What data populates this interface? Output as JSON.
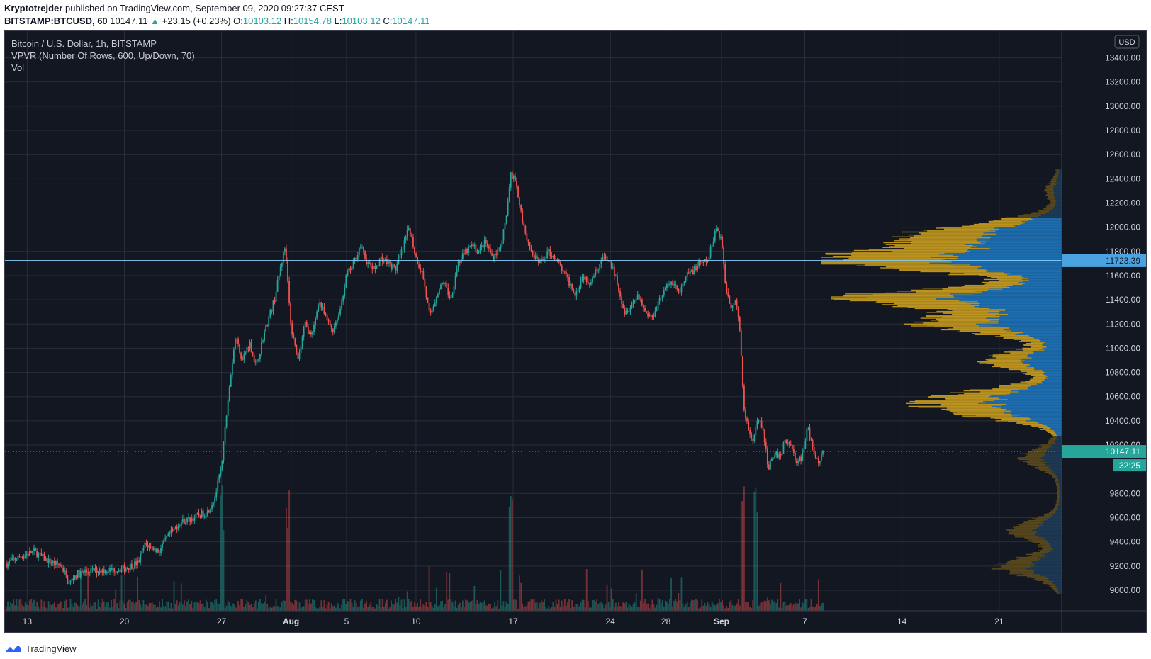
{
  "header": {
    "author": "Kryptotrejder",
    "published": "published on TradingView.com, September 09, 2020 09:27:37 CEST",
    "symbol": "BITSTAMP:BTCUSD, 60",
    "last": "10147.11",
    "change_icon": "triangle-up-icon",
    "change": "+23.15 (+0.23%)",
    "o_label": "O:",
    "o_value": "10103.12",
    "h_label": "H:",
    "h_value": "10154.78",
    "l_label": "L:",
    "l_value": "10103.12",
    "c_label": "C:",
    "c_value": "10147.11"
  },
  "legend": {
    "title": "Bitcoin / U.S. Dollar, 1h, BITSTAMP",
    "indicator": "VPVR (Number Of Rows, 600, Up/Down, 70)",
    "volume": "Vol"
  },
  "footer": {
    "brand": "TradingView",
    "logo_icon": "tradingview-logo-icon"
  },
  "colors": {
    "background": "#131722",
    "grid": "#2a2e39",
    "up": "#26a69a",
    "down": "#ef5350",
    "poc_line": "#8ad0ff",
    "vp_value_area_up": "#1e73b9",
    "vp_value_area_down": "#c49a1f",
    "vp_outside_up": "#1d3b57",
    "vp_outside_down": "#5b4a1c",
    "price_label": "#26a69a"
  },
  "chart_data": {
    "type": "candlestick",
    "title": "Bitcoin / U.S. Dollar, 1h, BITSTAMP",
    "currency": "USD",
    "y_axis": {
      "ticks": [
        "13400.00",
        "13200.00",
        "13000.00",
        "12800.00",
        "12600.00",
        "12400.00",
        "12200.00",
        "12000.00",
        "11800.00",
        "11600.00",
        "11400.00",
        "11200.00",
        "11000.00",
        "10800.00",
        "10600.00",
        "10400.00",
        "10200.00",
        "9800.00",
        "9600.00",
        "9400.00",
        "9200.00",
        "9000.00"
      ],
      "ylim": [
        8830,
        13620
      ]
    },
    "x_axis": {
      "ticks": [
        {
          "label": "13",
          "day": 13
        },
        {
          "label": "20",
          "day": 20
        },
        {
          "label": "27",
          "day": 27
        },
        {
          "label": "Aug",
          "day": 32
        },
        {
          "label": "5",
          "day": 36
        },
        {
          "label": "10",
          "day": 41
        },
        {
          "label": "17",
          "day": 48
        },
        {
          "label": "24",
          "day": 55
        },
        {
          "label": "28",
          "day": 59
        },
        {
          "label": "Sep",
          "day": 63
        },
        {
          "label": "7",
          "day": 69
        },
        {
          "label": "14",
          "day": 76
        },
        {
          "label": "21",
          "day": 83
        }
      ],
      "bold_labels": [
        "Aug",
        "Sep"
      ],
      "xlim": [
        11.4,
        87.5
      ]
    },
    "price_path": [
      [
        11.5,
        9220
      ],
      [
        12.5,
        9280
      ],
      [
        13.5,
        9320
      ],
      [
        14.5,
        9240
      ],
      [
        15.5,
        9200
      ],
      [
        16,
        9050
      ],
      [
        16.5,
        9130
      ],
      [
        17.5,
        9160
      ],
      [
        19,
        9170
      ],
      [
        20,
        9180
      ],
      [
        21,
        9230
      ],
      [
        21.5,
        9380
      ],
      [
        22.5,
        9320
      ],
      [
        23,
        9420
      ],
      [
        24,
        9560
      ],
      [
        25,
        9600
      ],
      [
        26,
        9650
      ],
      [
        26.5,
        9760
      ],
      [
        27,
        10020
      ],
      [
        27.5,
        10650
      ],
      [
        28,
        11100
      ],
      [
        28.5,
        10900
      ],
      [
        29,
        11050
      ],
      [
        29.5,
        10850
      ],
      [
        30,
        11100
      ],
      [
        30.8,
        11400
      ],
      [
        31.3,
        11700
      ],
      [
        31.6,
        11850
      ],
      [
        32,
        11150
      ],
      [
        32.5,
        10900
      ],
      [
        33,
        11200
      ],
      [
        33.5,
        11080
      ],
      [
        34,
        11400
      ],
      [
        34.5,
        11250
      ],
      [
        35,
        11150
      ],
      [
        35.5,
        11300
      ],
      [
        36,
        11600
      ],
      [
        36.5,
        11700
      ],
      [
        37,
        11850
      ],
      [
        37.5,
        11700
      ],
      [
        38,
        11650
      ],
      [
        38.5,
        11750
      ],
      [
        39,
        11700
      ],
      [
        39.5,
        11650
      ],
      [
        40,
        11800
      ],
      [
        40.5,
        12000
      ],
      [
        41,
        11750
      ],
      [
        41.5,
        11600
      ],
      [
        42,
        11250
      ],
      [
        42.5,
        11450
      ],
      [
        43,
        11550
      ],
      [
        43.5,
        11400
      ],
      [
        44,
        11700
      ],
      [
        44.5,
        11780
      ],
      [
        45,
        11850
      ],
      [
        45.5,
        11800
      ],
      [
        46,
        11880
      ],
      [
        46.5,
        11750
      ],
      [
        47,
        11820
      ],
      [
        47.5,
        12050
      ],
      [
        47.8,
        12450
      ],
      [
        48.2,
        12380
      ],
      [
        48.6,
        12100
      ],
      [
        49,
        11900
      ],
      [
        49.5,
        11750
      ],
      [
        50,
        11700
      ],
      [
        50.5,
        11800
      ],
      [
        51,
        11750
      ],
      [
        51.5,
        11650
      ],
      [
        52,
        11550
      ],
      [
        52.5,
        11450
      ],
      [
        53,
        11600
      ],
      [
        53.5,
        11550
      ],
      [
        54,
        11650
      ],
      [
        54.5,
        11750
      ],
      [
        55,
        11700
      ],
      [
        55.5,
        11550
      ],
      [
        56,
        11300
      ],
      [
        56.5,
        11350
      ],
      [
        57,
        11450
      ],
      [
        57.5,
        11300
      ],
      [
        58,
        11250
      ],
      [
        58.5,
        11400
      ],
      [
        59,
        11500
      ],
      [
        59.5,
        11550
      ],
      [
        60,
        11450
      ],
      [
        60.5,
        11600
      ],
      [
        61,
        11650
      ],
      [
        61.5,
        11700
      ],
      [
        62,
        11720
      ],
      [
        62.3,
        11850
      ],
      [
        62.6,
        12000
      ],
      [
        63,
        11900
      ],
      [
        63.3,
        11500
      ],
      [
        63.7,
        11350
      ],
      [
        64,
        11400
      ],
      [
        64.3,
        11200
      ],
      [
        64.6,
        10500
      ],
      [
        65,
        10300
      ],
      [
        65.3,
        10200
      ],
      [
        65.6,
        10450
      ],
      [
        66,
        10300
      ],
      [
        66.4,
        10000
      ],
      [
        66.8,
        10150
      ],
      [
        67.2,
        10100
      ],
      [
        67.6,
        10250
      ],
      [
        68,
        10200
      ],
      [
        68.4,
        10050
      ],
      [
        68.8,
        10100
      ],
      [
        69.2,
        10350
      ],
      [
        69.6,
        10150
      ],
      [
        70,
        10050
      ],
      [
        70.3,
        10147
      ]
    ],
    "volume_profile_note": "VPVR histogram split into up/down volume; value area highlighted",
    "poc_price": 11723.39,
    "value_area": [
      10280,
      12080
    ],
    "last_price": "10147.11",
    "poc_label": "11723.39",
    "countdown": "32:25",
    "volume_spike_days": [
      27,
      31.8,
      47.8,
      64.5,
      65.5
    ]
  }
}
